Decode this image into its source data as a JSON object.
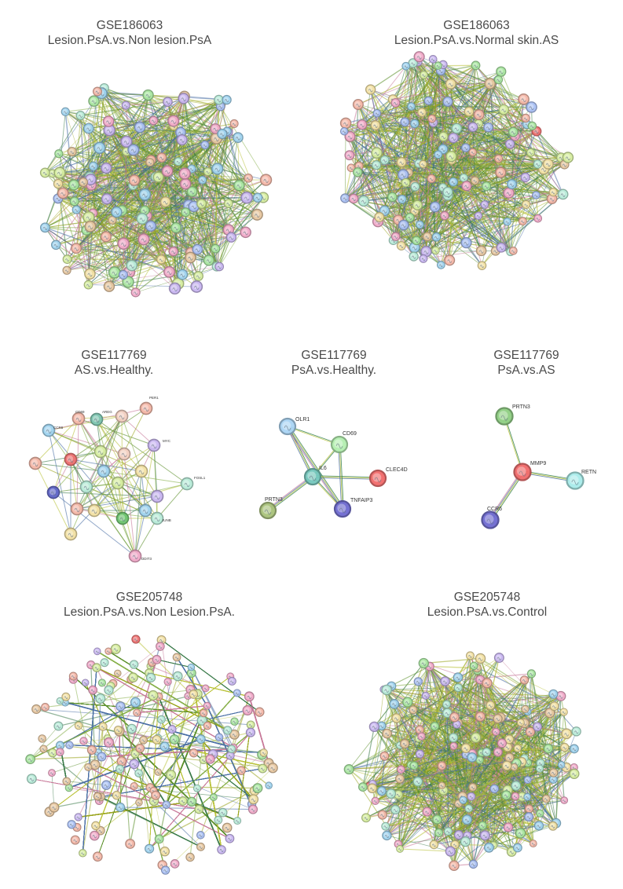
{
  "panels": [
    {
      "id": "p1",
      "dataset": "GSE186063",
      "comparison": "Lesion.PsA.vs.Non lesion.PsA",
      "labeled_nodes": []
    },
    {
      "id": "p2",
      "dataset": "GSE186063",
      "comparison": "Lesion.PsA.vs.Normal skin.AS",
      "labeled_nodes": []
    },
    {
      "id": "p3",
      "dataset": "GSE117769",
      "comparison": "AS.vs.Healthy.",
      "labeled_nodes": [
        "PER1",
        "MYC",
        "FOSL1",
        "JUNB",
        "CD69",
        "AREG",
        "CCR6",
        "DDIT3"
      ]
    },
    {
      "id": "p4",
      "dataset": "GSE117769",
      "comparison": "PsA.vs.Healthy.",
      "labeled_nodes": [
        "OLR1",
        "CD69",
        "IL6",
        "CLEC4D",
        "PRTN3",
        "TNFAIP3"
      ]
    },
    {
      "id": "p5",
      "dataset": "GSE117769",
      "comparison": "PsA.vs.AS",
      "labeled_nodes": [
        "PRTN3",
        "MMP9",
        "RETN",
        "CCR6"
      ]
    },
    {
      "id": "p6",
      "dataset": "GSE205748",
      "comparison": "Lesion.PsA.vs.Non Lesion.PsA.",
      "labeled_nodes": []
    },
    {
      "id": "p7",
      "dataset": "GSE205748",
      "comparison": "Lesion.PsA.vs.Control",
      "labeled_nodes": []
    }
  ],
  "networks": {
    "p4": {
      "nodes": [
        "OLR1",
        "CD69",
        "IL6",
        "CLEC4D",
        "PRTN3",
        "TNFAIP3"
      ],
      "edges": [
        [
          "OLR1",
          "CD69"
        ],
        [
          "OLR1",
          "IL6"
        ],
        [
          "OLR1",
          "TNFAIP3"
        ],
        [
          "CD69",
          "IL6"
        ],
        [
          "IL6",
          "CLEC4D"
        ],
        [
          "IL6",
          "PRTN3"
        ],
        [
          "IL6",
          "TNFAIP3"
        ],
        [
          "CD69",
          "TNFAIP3"
        ]
      ]
    },
    "p5": {
      "nodes": [
        "PRTN3",
        "MMP9",
        "RETN",
        "CCR6"
      ],
      "edges": [
        [
          "PRTN3",
          "MMP9"
        ],
        [
          "MMP9",
          "RETN"
        ],
        [
          "MMP9",
          "CCR6"
        ]
      ]
    }
  },
  "colors": {
    "node_palette": [
      "#9fd3f0",
      "#a8e6a0",
      "#c9b6f2",
      "#f5b7a7",
      "#f3e1a3",
      "#b8ecd9",
      "#f2a9c9",
      "#a9c0f5",
      "#d6ee9f",
      "#e7c7a0"
    ],
    "edge_palette": [
      "#9aa51f",
      "#5b8f2a",
      "#c77a9a",
      "#4a6fa5",
      "#88b04b",
      "#b9c23a",
      "#3d7c4c"
    ],
    "title_text": "#4a4a4a"
  }
}
